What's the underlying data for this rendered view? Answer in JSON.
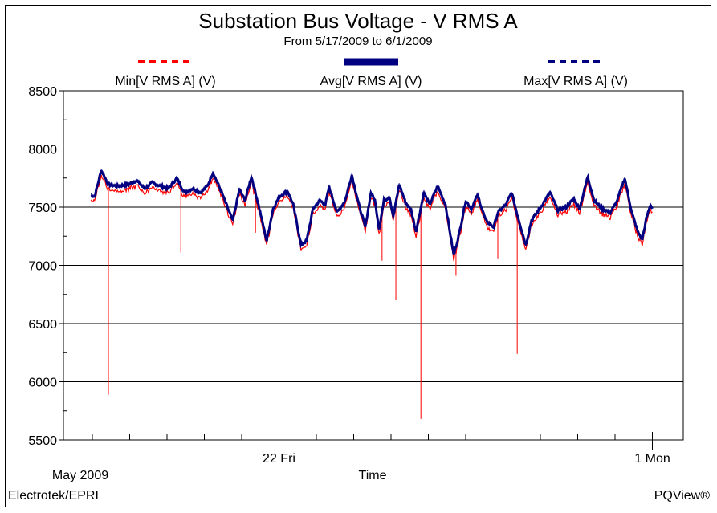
{
  "chart_data": {
    "type": "line",
    "title": "Substation Bus Voltage - V RMS A",
    "subtitle": "From 5/17/2009 to 6/1/2009",
    "xlabel": "Time",
    "ylabel": "",
    "x_units": "day of May 2009",
    "xlim": [
      16.2,
      32.8
    ],
    "ylim": [
      5500,
      8500
    ],
    "yticks": [
      5500,
      6000,
      6500,
      7000,
      7500,
      8000,
      8500
    ],
    "xtick_labels": [
      {
        "x": 22,
        "label": "22 Fri"
      },
      {
        "x": 32,
        "label": "1 Mon"
      }
    ],
    "x_origin_label": "May 2009",
    "grid": true,
    "legend_position": "top",
    "colors": {
      "min": "#ff0000",
      "avg": "#000080",
      "max": "#000080"
    },
    "series": [
      {
        "name": "Min[V RMS A] (V)",
        "style": "dashed",
        "offset_from_avg": -40,
        "spikes": [
          [
            17.43,
            5890
          ],
          [
            19.37,
            7110
          ],
          [
            21.37,
            7280
          ],
          [
            24.76,
            7040
          ],
          [
            25.13,
            6700
          ],
          [
            25.8,
            5680
          ],
          [
            26.74,
            6910
          ],
          [
            27.86,
            7060
          ],
          [
            28.38,
            6240
          ]
        ]
      },
      {
        "name": "Avg[V RMS A] (V)",
        "style": "solid",
        "points": [
          [
            16.96,
            7603
          ],
          [
            17.06,
            7590
          ],
          [
            17.24,
            7817
          ],
          [
            17.43,
            7693
          ],
          [
            17.65,
            7679
          ],
          [
            17.97,
            7693
          ],
          [
            18.18,
            7728
          ],
          [
            18.4,
            7659
          ],
          [
            18.61,
            7707
          ],
          [
            18.83,
            7679
          ],
          [
            19.04,
            7659
          ],
          [
            19.26,
            7748
          ],
          [
            19.47,
            7624
          ],
          [
            19.69,
            7659
          ],
          [
            19.9,
            7624
          ],
          [
            20.08,
            7679
          ],
          [
            20.23,
            7797
          ],
          [
            20.44,
            7645
          ],
          [
            20.59,
            7521
          ],
          [
            20.76,
            7383
          ],
          [
            20.94,
            7652
          ],
          [
            21.09,
            7555
          ],
          [
            21.26,
            7762
          ],
          [
            21.45,
            7521
          ],
          [
            21.67,
            7210
          ],
          [
            21.84,
            7486
          ],
          [
            22.01,
            7590
          ],
          [
            22.23,
            7638
          ],
          [
            22.38,
            7521
          ],
          [
            22.59,
            7176
          ],
          [
            22.74,
            7210
          ],
          [
            22.91,
            7486
          ],
          [
            23.09,
            7555
          ],
          [
            23.24,
            7521
          ],
          [
            23.34,
            7672
          ],
          [
            23.56,
            7452
          ],
          [
            23.77,
            7555
          ],
          [
            23.95,
            7776
          ],
          [
            24.14,
            7521
          ],
          [
            24.31,
            7328
          ],
          [
            24.46,
            7624
          ],
          [
            24.57,
            7555
          ],
          [
            24.68,
            7314
          ],
          [
            24.81,
            7555
          ],
          [
            24.96,
            7590
          ],
          [
            25.06,
            7417
          ],
          [
            25.22,
            7693
          ],
          [
            25.39,
            7541
          ],
          [
            25.54,
            7472
          ],
          [
            25.67,
            7293
          ],
          [
            25.88,
            7624
          ],
          [
            26.03,
            7521
          ],
          [
            26.25,
            7679
          ],
          [
            26.46,
            7521
          ],
          [
            26.68,
            7086
          ],
          [
            26.83,
            7279
          ],
          [
            27.0,
            7555
          ],
          [
            27.15,
            7486
          ],
          [
            27.32,
            7603
          ],
          [
            27.54,
            7383
          ],
          [
            27.75,
            7328
          ],
          [
            27.86,
            7452
          ],
          [
            28.08,
            7521
          ],
          [
            28.23,
            7624
          ],
          [
            28.4,
            7417
          ],
          [
            28.61,
            7176
          ],
          [
            28.76,
            7383
          ],
          [
            28.98,
            7486
          ],
          [
            29.26,
            7624
          ],
          [
            29.47,
            7472
          ],
          [
            29.69,
            7500
          ],
          [
            29.9,
            7569
          ],
          [
            30.05,
            7486
          ],
          [
            30.27,
            7762
          ],
          [
            30.44,
            7555
          ],
          [
            30.66,
            7486
          ],
          [
            30.87,
            7452
          ],
          [
            31.04,
            7541
          ],
          [
            31.26,
            7748
          ],
          [
            31.45,
            7452
          ],
          [
            31.62,
            7279
          ],
          [
            31.73,
            7224
          ],
          [
            31.84,
            7403
          ],
          [
            31.95,
            7521
          ],
          [
            32.0,
            7486
          ]
        ]
      },
      {
        "name": "Max[V RMS A] (V)",
        "style": "dashed",
        "offset_from_avg": 12
      }
    ]
  },
  "footer": {
    "left": "Electrotek/EPRI",
    "right": "PQView®"
  }
}
